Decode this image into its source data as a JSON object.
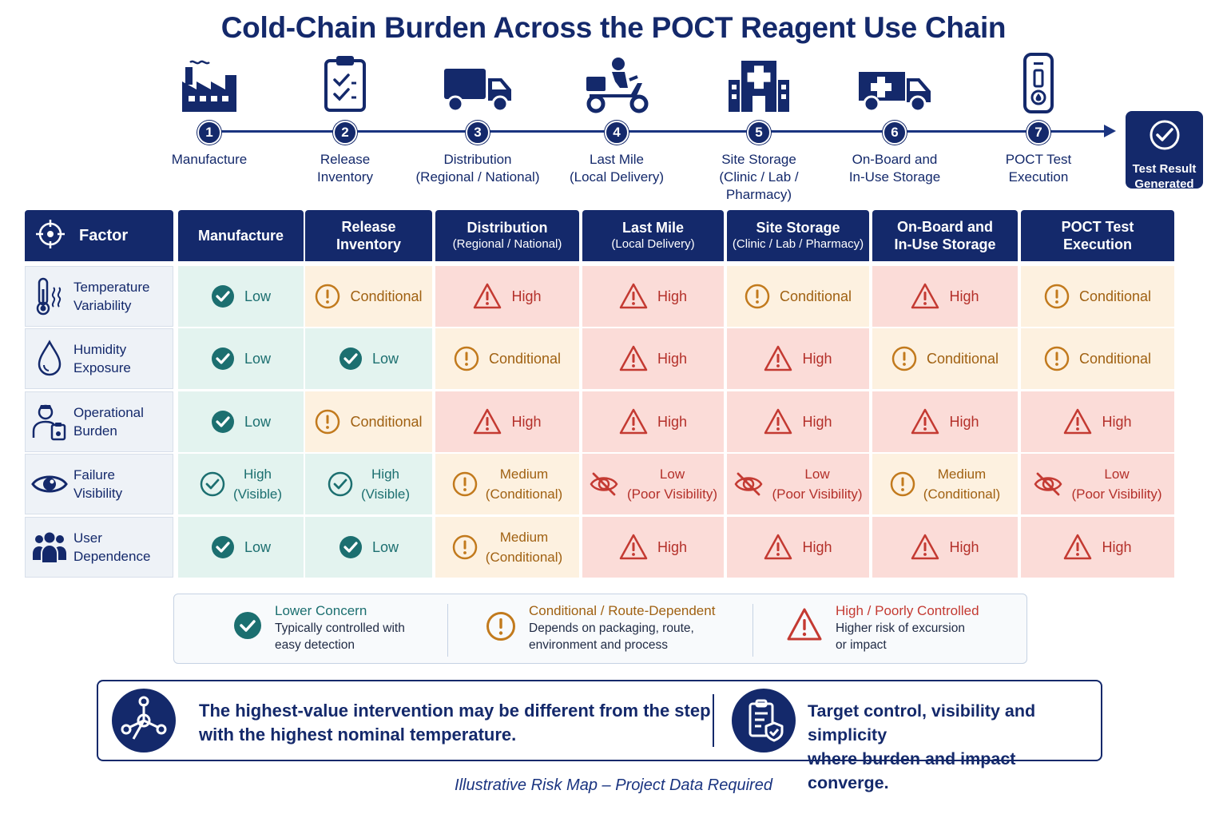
{
  "title": "Cold-Chain Burden Across the POCT Reagent Use Chain",
  "flow": {
    "steps": [
      {
        "num": "1",
        "label": "Manufacture",
        "icon": "factory-icon"
      },
      {
        "num": "2",
        "label": "Release\nInventory",
        "icon": "clipboard-check-icon"
      },
      {
        "num": "3",
        "label": "Distribution\n(Regional / National)",
        "icon": "truck-icon"
      },
      {
        "num": "4",
        "label": "Last Mile\n(Local Delivery)",
        "icon": "scooter-courier-icon"
      },
      {
        "num": "5",
        "label": "Site Storage\n(Clinic / Lab / Pharmacy)",
        "icon": "clinic-building-icon"
      },
      {
        "num": "6",
        "label": "On-Board and\nIn-Use Storage",
        "icon": "ambulance-icon"
      },
      {
        "num": "7",
        "label": "POCT Test\nExecution",
        "icon": "test-cartridge-icon"
      }
    ],
    "result": {
      "label": "Test Result\nGenerated",
      "icon": "check-circle-icon"
    }
  },
  "matrix": {
    "factor_header": "Factor",
    "columns": [
      {
        "t1": "Manufacture",
        "t2": ""
      },
      {
        "t1": "Release",
        "t2": "Inventory"
      },
      {
        "t1": "Distribution",
        "t2": "(Regional / National)"
      },
      {
        "t1": "Last Mile",
        "t2": "(Local Delivery)"
      },
      {
        "t1": "Site Storage",
        "t2": "(Clinic / Lab / Pharmacy)"
      },
      {
        "t1": "On-Board and",
        "t2": "In-Use Storage"
      },
      {
        "t1": "POCT Test",
        "t2": "Execution"
      }
    ],
    "rows": [
      {
        "factor": "Temperature\nVariability",
        "icon": "thermometer-icon",
        "cells": [
          {
            "level": "low",
            "mark": "check",
            "text": "Low"
          },
          {
            "level": "cond",
            "mark": "exclaim",
            "text": "Conditional"
          },
          {
            "level": "high",
            "mark": "warn",
            "text": "High"
          },
          {
            "level": "high",
            "mark": "warn",
            "text": "High"
          },
          {
            "level": "cond",
            "mark": "exclaim",
            "text": "Conditional"
          },
          {
            "level": "high",
            "mark": "warn",
            "text": "High"
          },
          {
            "level": "cond",
            "mark": "exclaim",
            "text": "Conditional"
          }
        ]
      },
      {
        "factor": "Humidity\nExposure",
        "icon": "water-drop-icon",
        "cells": [
          {
            "level": "low",
            "mark": "check",
            "text": "Low"
          },
          {
            "level": "low",
            "mark": "check",
            "text": "Low"
          },
          {
            "level": "cond",
            "mark": "exclaim",
            "text": "Conditional"
          },
          {
            "level": "high",
            "mark": "warn",
            "text": "High"
          },
          {
            "level": "high",
            "mark": "warn",
            "text": "High"
          },
          {
            "level": "cond",
            "mark": "exclaim",
            "text": "Conditional"
          },
          {
            "level": "cond",
            "mark": "exclaim",
            "text": "Conditional"
          }
        ]
      },
      {
        "factor": "Operational\nBurden",
        "icon": "operator-icon",
        "cells": [
          {
            "level": "low",
            "mark": "check",
            "text": "Low"
          },
          {
            "level": "cond",
            "mark": "exclaim",
            "text": "Conditional"
          },
          {
            "level": "high",
            "mark": "warn",
            "text": "High"
          },
          {
            "level": "high",
            "mark": "warn",
            "text": "High"
          },
          {
            "level": "high",
            "mark": "warn",
            "text": "High"
          },
          {
            "level": "high",
            "mark": "warn",
            "text": "High"
          },
          {
            "level": "high",
            "mark": "warn",
            "text": "High"
          }
        ]
      },
      {
        "factor": "Failure\nVisibility",
        "icon": "eye-icon",
        "cells": [
          {
            "level": "low",
            "mark": "check-outline",
            "text": "High\n(Visible)"
          },
          {
            "level": "low",
            "mark": "check-outline",
            "text": "High\n(Visible)"
          },
          {
            "level": "cond",
            "mark": "exclaim",
            "text": "Medium\n(Conditional)"
          },
          {
            "level": "high",
            "mark": "eye-off",
            "text": "Low\n(Poor Visibility)"
          },
          {
            "level": "high",
            "mark": "eye-off",
            "text": "Low\n(Poor Visibility)"
          },
          {
            "level": "cond",
            "mark": "exclaim",
            "text": "Medium\n(Conditional)"
          },
          {
            "level": "high",
            "mark": "eye-off",
            "text": "Low\n(Poor Visibility)"
          }
        ]
      },
      {
        "factor": "User\nDependence",
        "icon": "users-group-icon",
        "cells": [
          {
            "level": "low",
            "mark": "check",
            "text": "Low"
          },
          {
            "level": "low",
            "mark": "check",
            "text": "Low"
          },
          {
            "level": "cond",
            "mark": "exclaim",
            "text": "Medium\n(Conditional)"
          },
          {
            "level": "high",
            "mark": "warn",
            "text": "High"
          },
          {
            "level": "high",
            "mark": "warn",
            "text": "High"
          },
          {
            "level": "high",
            "mark": "warn",
            "text": "High"
          },
          {
            "level": "high",
            "mark": "warn",
            "text": "High"
          }
        ]
      }
    ]
  },
  "legend": [
    {
      "title": "Lower Concern",
      "desc": "Typically controlled with\neasy detection",
      "icon": "check-circle-icon"
    },
    {
      "title": "Conditional / Route-Dependent",
      "desc": "Depends on packaging, route,\nenvironment and process",
      "icon": "exclamation-circle-icon"
    },
    {
      "title": "High / Poorly Controlled",
      "desc": "Higher risk of excursion\nor impact",
      "icon": "warning-triangle-icon"
    }
  ],
  "insight": {
    "left": "The highest-value intervention may be different from the step\nwith the highest nominal temperature.",
    "right": "Target control, visibility and simplicity\nwhere burden and impact converge.",
    "left_icon": "network-node-icon",
    "right_icon": "clipboard-shield-icon"
  },
  "footer": "Illustrative Risk Map – Project Data Required",
  "colors": {
    "navy": "#14296b",
    "low": "#1c6f70",
    "conditional": "#a06112",
    "high": "#b4302a"
  }
}
